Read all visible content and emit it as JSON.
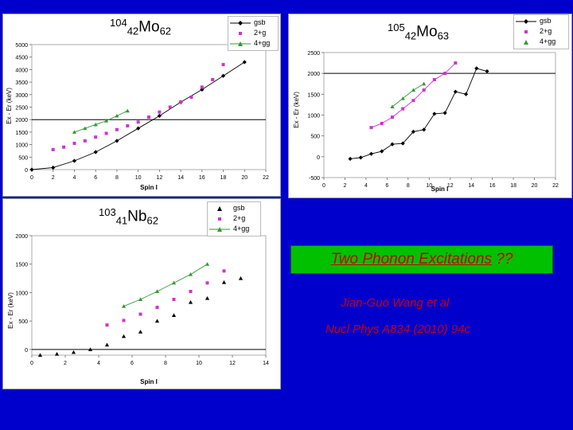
{
  "panels": [
    {
      "id": "mo104",
      "nucleus": {
        "A": "104",
        "Z": "42",
        "symbol": "Mo",
        "N": "62"
      },
      "legend": [
        "gsb",
        "2+g",
        "4+gg"
      ],
      "ylabel": "Ex - Er (keV)",
      "xlabel": "Spin I",
      "xticks": [
        0,
        2,
        4,
        6,
        8,
        10,
        12,
        14,
        16,
        18,
        20,
        22
      ],
      "yticks": [
        0,
        500,
        1000,
        1500,
        2000,
        2500,
        3000,
        3500,
        4000,
        4500,
        5000
      ],
      "refline": 2000
    },
    {
      "id": "mo105",
      "nucleus": {
        "A": "105",
        "Z": "42",
        "symbol": "Mo",
        "N": "63"
      },
      "legend": [
        "gsb",
        "2+g",
        "4+gg"
      ],
      "ylabel": "Ex - Er (keV)",
      "xlabel": "Spin I",
      "xticks": [
        0,
        2,
        4,
        6,
        8,
        10,
        12,
        14,
        16,
        18,
        20,
        22
      ],
      "yticks": [
        -500,
        0,
        500,
        1000,
        1500,
        2000,
        2500
      ],
      "refline": 2000
    },
    {
      "id": "nb103",
      "nucleus": {
        "A": "103",
        "Z": "41",
        "symbol": "Nb",
        "N": "62"
      },
      "legend": [
        "gsb",
        "2+g",
        "4+gg"
      ],
      "ylabel": "Ex - Er (keV)",
      "xlabel": "Spin I",
      "xticks": [
        0,
        2,
        4,
        6,
        8,
        10,
        12,
        14
      ],
      "yticks": [
        0,
        500,
        1000,
        1500,
        2000
      ],
      "refline": 0
    }
  ],
  "title": {
    "main": "Two Phonon Excitations",
    "suffix": "??"
  },
  "citation": {
    "author": "Jian-Guo Wang et al",
    "journal": "Nucl Phys A834 (2010) 94c"
  },
  "colors": {
    "gsb": "#000000",
    "2+g": "#cc33cc",
    "4+gg": "#339933",
    "background": "#0000cc",
    "titlebox": "#00c000",
    "text_red": "#cc0000"
  },
  "chart_data": [
    {
      "type": "scatter",
      "title": "104Mo62",
      "xlabel": "Spin I",
      "ylabel": "Ex - Er (keV)",
      "xlim": [
        0,
        22
      ],
      "ylim": [
        0,
        5000
      ],
      "series": [
        {
          "name": "gsb",
          "x": [
            0,
            2,
            4,
            6,
            8,
            10,
            12,
            14,
            16,
            18,
            20
          ],
          "y": [
            0,
            80,
            350,
            700,
            1150,
            1650,
            2150,
            2700,
            3200,
            3750,
            4300
          ]
        },
        {
          "name": "2+g",
          "x": [
            2,
            3,
            4,
            5,
            6,
            7,
            8,
            9,
            10,
            11,
            12,
            13,
            14,
            15,
            16,
            17,
            18
          ],
          "y": [
            800,
            900,
            1050,
            1150,
            1300,
            1450,
            1600,
            1750,
            1900,
            2100,
            2300,
            2500,
            2700,
            2900,
            3300,
            3600,
            4200
          ]
        },
        {
          "name": "4+gg",
          "x": [
            4,
            5,
            6,
            7,
            8,
            9
          ],
          "y": [
            1500,
            1650,
            1800,
            1950,
            2150,
            2350
          ]
        }
      ]
    },
    {
      "type": "scatter",
      "title": "105Mo63",
      "xlabel": "Spin I",
      "ylabel": "Ex - Er (keV)",
      "xlim": [
        0,
        22
      ],
      "ylim": [
        -500,
        2500
      ],
      "series": [
        {
          "name": "gsb",
          "x": [
            2.5,
            3.5,
            4.5,
            5.5,
            6.5,
            7.5,
            8.5,
            9.5,
            10.5,
            11.5,
            12.5,
            13.5,
            14.5,
            15.5
          ],
          "y": [
            -50,
            -20,
            70,
            130,
            300,
            320,
            600,
            650,
            1030,
            1050,
            1560,
            1500,
            2120,
            2050
          ]
        },
        {
          "name": "2+g",
          "x": [
            4.5,
            5.5,
            6.5,
            7.5,
            8.5,
            9.5,
            10.5,
            11.5,
            12.5
          ],
          "y": [
            700,
            800,
            950,
            1150,
            1350,
            1600,
            1850,
            2000,
            2250
          ]
        },
        {
          "name": "4+gg",
          "x": [
            6.5,
            7.5,
            8.5,
            9.5
          ],
          "y": [
            1200,
            1400,
            1600,
            1750
          ]
        }
      ]
    },
    {
      "type": "scatter",
      "title": "103Nb62",
      "xlabel": "Spin I",
      "ylabel": "Ex - Er (keV)",
      "xlim": [
        0,
        14
      ],
      "ylim": [
        -100,
        2000
      ],
      "series": [
        {
          "name": "gsb",
          "x": [
            0.5,
            1.5,
            2.5,
            3.5,
            4.5,
            5.5,
            6.5,
            7.5,
            8.5,
            9.5,
            10.5,
            11.5,
            12.5
          ],
          "y": [
            -100,
            -80,
            -50,
            0,
            80,
            230,
            310,
            500,
            600,
            830,
            900,
            1180,
            1250
          ]
        },
        {
          "name": "2+g",
          "x": [
            4.5,
            5.5,
            6.5,
            7.5,
            8.5,
            9.5,
            10.5,
            11.5
          ],
          "y": [
            430,
            510,
            620,
            740,
            880,
            1020,
            1170,
            1380
          ]
        },
        {
          "name": "4+gg",
          "x": [
            5.5,
            6.5,
            7.5,
            8.5,
            9.5,
            10.5
          ],
          "y": [
            760,
            880,
            1020,
            1170,
            1320,
            1500
          ]
        }
      ]
    }
  ]
}
